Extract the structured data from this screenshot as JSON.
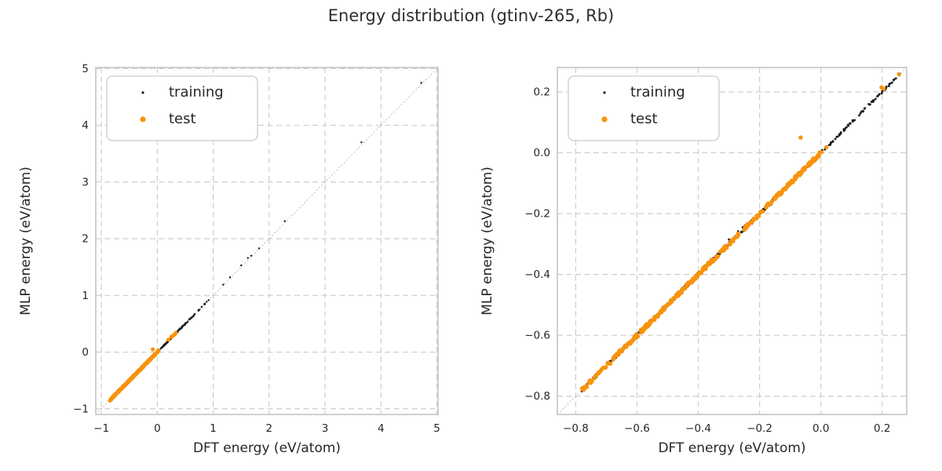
{
  "title": "Energy distribution (gtinv-265, Rb)",
  "colors": {
    "background": "#ffffff",
    "training": "#1a1a1a",
    "test": "#f7930e",
    "grid": "#cdcdcd",
    "spine": "#c4c4c4",
    "identity": "#b3b3b3",
    "text": "#262626",
    "legend_border": "#cccccc"
  },
  "chart_data": [
    {
      "type": "scatter",
      "title": "",
      "xlabel": "DFT energy (eV/atom)",
      "ylabel": "MLP energy (eV/atom)",
      "xlim": [
        -1.1,
        5.02
      ],
      "ylim": [
        -1.1,
        5.02
      ],
      "grid": true,
      "identity_line": true,
      "xticks": [
        {
          "v": -1,
          "label": "−1"
        },
        {
          "v": 0,
          "label": "0"
        },
        {
          "v": 1,
          "label": "1"
        },
        {
          "v": 2,
          "label": "2"
        },
        {
          "v": 3,
          "label": "3"
        },
        {
          "v": 4,
          "label": "4"
        },
        {
          "v": 5,
          "label": "5"
        }
      ],
      "yticks": [
        {
          "v": -1,
          "label": "−1"
        },
        {
          "v": 0,
          "label": "0"
        },
        {
          "v": 1,
          "label": "1"
        },
        {
          "v": 2,
          "label": "2"
        },
        {
          "v": 3,
          "label": "3"
        },
        {
          "v": 4,
          "label": "4"
        },
        {
          "v": 5,
          "label": "5"
        }
      ],
      "legend": {
        "position": "upper-left",
        "items": [
          {
            "series": "training",
            "label": "training"
          },
          {
            "series": "test",
            "label": "test"
          }
        ]
      },
      "series": [
        {
          "name": "training",
          "color_key": "training",
          "marker_r": 1.2,
          "bands": [
            {
              "from": -0.85,
              "to": 0.1,
              "n": 200,
              "jitter": 0.01,
              "seed": 11
            },
            {
              "from": 0.1,
              "to": 0.62,
              "n": 110,
              "jitter": 0.012,
              "seed": 12
            },
            {
              "from": 0.62,
              "to": 1.02,
              "n": 16,
              "jitter": 0.01,
              "seed": 13
            }
          ],
          "points": [
            [
              1.18,
              1.19
            ],
            [
              1.3,
              1.32
            ],
            [
              1.5,
              1.53
            ],
            [
              1.62,
              1.66
            ],
            [
              1.68,
              1.7
            ],
            [
              1.82,
              1.83
            ],
            [
              2.28,
              2.31
            ],
            [
              3.65,
              3.7
            ],
            [
              4.72,
              4.75
            ]
          ]
        },
        {
          "name": "test",
          "color_key": "test",
          "marker_r": 2.6,
          "bands": [
            {
              "from": -0.85,
              "to": 0.03,
              "n": 260,
              "jitter": 0.01,
              "seed": 21
            }
          ],
          "points": [
            [
              -0.08,
              0.05
            ],
            [
              0.2,
              0.22
            ],
            [
              0.25,
              0.27
            ],
            [
              0.28,
              0.29
            ],
            [
              0.31,
              0.31
            ],
            [
              0.33,
              0.34
            ]
          ]
        }
      ]
    },
    {
      "type": "scatter",
      "title": "",
      "xlabel": "DFT energy (eV/atom)",
      "ylabel": "MLP energy (eV/atom)",
      "xlim": [
        -0.86,
        0.28
      ],
      "ylim": [
        -0.86,
        0.28
      ],
      "grid": true,
      "identity_line": true,
      "xticks": [
        {
          "v": -0.8,
          "label": "−0.8"
        },
        {
          "v": -0.6,
          "label": "−0.6"
        },
        {
          "v": -0.4,
          "label": "−0.4"
        },
        {
          "v": -0.2,
          "label": "−0.2"
        },
        {
          "v": 0.0,
          "label": "0.0"
        },
        {
          "v": 0.2,
          "label": "0.2"
        }
      ],
      "yticks": [
        {
          "v": -0.8,
          "label": "−0.8"
        },
        {
          "v": -0.6,
          "label": "−0.6"
        },
        {
          "v": -0.4,
          "label": "−0.4"
        },
        {
          "v": -0.2,
          "label": "−0.2"
        },
        {
          "v": 0.0,
          "label": "0.0"
        },
        {
          "v": 0.2,
          "label": "0.2"
        }
      ],
      "legend": {
        "position": "upper-left",
        "items": [
          {
            "series": "training",
            "label": "training"
          },
          {
            "series": "test",
            "label": "test"
          }
        ]
      },
      "series": [
        {
          "name": "training",
          "color_key": "training",
          "marker_r": 1.4,
          "bands": [
            {
              "from": -0.78,
              "to": 0.05,
              "n": 300,
              "jitter": 0.005,
              "seed": 31
            },
            {
              "from": 0.05,
              "to": 0.26,
              "n": 60,
              "jitter": 0.004,
              "seed": 32
            }
          ],
          "points": [
            [
              -0.3,
              -0.285
            ],
            [
              -0.27,
              -0.258
            ],
            [
              -0.255,
              -0.245
            ],
            [
              -0.24,
              -0.232
            ]
          ]
        },
        {
          "name": "test",
          "color_key": "test",
          "marker_r": 2.7,
          "bands": [
            {
              "from": -0.78,
              "to": 0.0,
              "n": 340,
              "jitter": 0.006,
              "seed": 41
            }
          ],
          "points": [
            [
              -0.066,
              0.05
            ],
            [
              0.198,
              0.215
            ],
            [
              0.205,
              0.21
            ],
            [
              0.255,
              0.258
            ],
            [
              0.018,
              0.018
            ],
            [
              0.002,
              0.002
            ],
            [
              -0.02,
              -0.019
            ]
          ]
        }
      ]
    }
  ]
}
